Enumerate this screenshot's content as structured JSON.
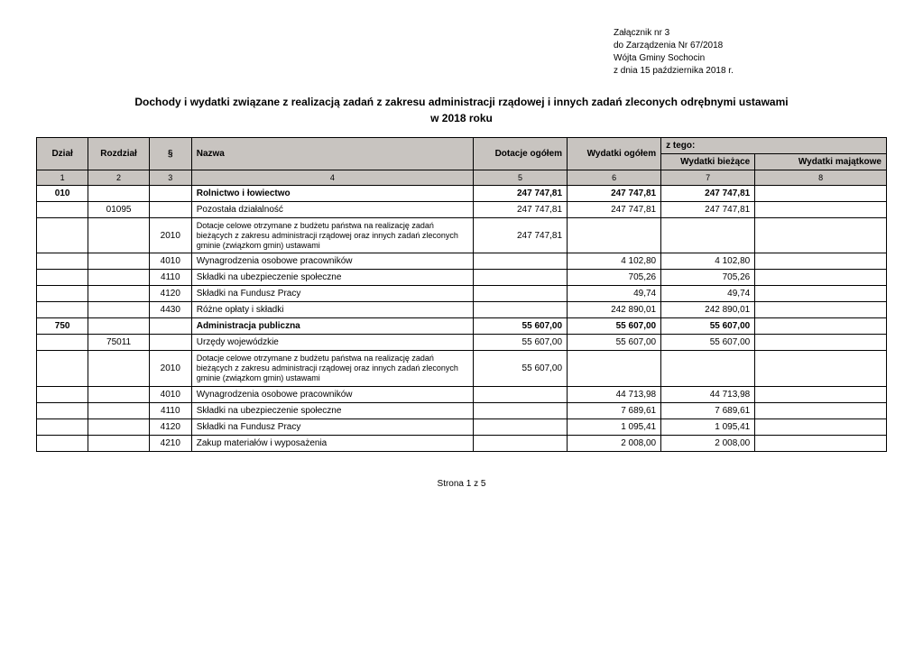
{
  "header": {
    "line1": "Załącznik nr 3",
    "line2": "do Zarządzenia Nr 67/2018",
    "line3": "Wójta Gminy Sochocin",
    "line4": "z dnia 15 października 2018 r."
  },
  "title": "Dochody i wydatki związane z realizacją zadań z zakresu administracji rządowej i innych zadań zleconych odrębnymi ustawami",
  "subtitle": "w 2018 roku",
  "columns": {
    "dzial": "Dział",
    "rozdzial": "Rozdział",
    "paragraf": "§",
    "nazwa": "Nazwa",
    "dotacje": "Dotacje ogółem",
    "wydatki": "Wydatki ogółem",
    "ztego": "z tego:",
    "biezace": "Wydatki bieżące",
    "majatkowe": "Wydatki majątkowe"
  },
  "numrow": {
    "c1": "1",
    "c2": "2",
    "c3": "3",
    "c4": "4",
    "c5": "5",
    "c6": "6",
    "c7": "7",
    "c8": "8"
  },
  "rows": [
    {
      "bold": true,
      "dzial": "010",
      "rozdz": "",
      "par": "",
      "nazwa": "Rolnictwo i łowiectwo",
      "dot": "247 747,81",
      "wyd": "247 747,81",
      "biez": "247 747,81",
      "maj": ""
    },
    {
      "bold": false,
      "dzial": "",
      "rozdz": "01095",
      "par": "",
      "nazwa": "Pozostała działalność",
      "dot": "247 747,81",
      "wyd": "247 747,81",
      "biez": "247 747,81",
      "maj": ""
    },
    {
      "bold": false,
      "small": true,
      "dzial": "",
      "rozdz": "",
      "par": "2010",
      "nazwa": "Dotacje celowe otrzymane z budżetu państwa na realizację zadań bieżących z zakresu administracji rządowej oraz innych zadań zleconych gminie (związkom gmin) ustawami",
      "dot": "247 747,81",
      "wyd": "",
      "biez": "",
      "maj": ""
    },
    {
      "bold": false,
      "dzial": "",
      "rozdz": "",
      "par": "4010",
      "nazwa": "Wynagrodzenia osobowe pracowników",
      "dot": "",
      "wyd": "4 102,80",
      "biez": "4 102,80",
      "maj": ""
    },
    {
      "bold": false,
      "dzial": "",
      "rozdz": "",
      "par": "4110",
      "nazwa": "Składki na ubezpieczenie społeczne",
      "dot": "",
      "wyd": "705,26",
      "biez": "705,26",
      "maj": ""
    },
    {
      "bold": false,
      "dzial": "",
      "rozdz": "",
      "par": "4120",
      "nazwa": "Składki na Fundusz Pracy",
      "dot": "",
      "wyd": "49,74",
      "biez": "49,74",
      "maj": ""
    },
    {
      "bold": false,
      "dzial": "",
      "rozdz": "",
      "par": "4430",
      "nazwa": "Różne opłaty i składki",
      "dot": "",
      "wyd": "242 890,01",
      "biez": "242 890,01",
      "maj": ""
    },
    {
      "bold": true,
      "dzial": "750",
      "rozdz": "",
      "par": "",
      "nazwa": "Administracja publiczna",
      "dot": "55 607,00",
      "wyd": "55 607,00",
      "biez": "55 607,00",
      "maj": ""
    },
    {
      "bold": false,
      "dzial": "",
      "rozdz": "75011",
      "par": "",
      "nazwa": "Urzędy wojewódzkie",
      "dot": "55 607,00",
      "wyd": "55 607,00",
      "biez": "55 607,00",
      "maj": ""
    },
    {
      "bold": false,
      "small": true,
      "dzial": "",
      "rozdz": "",
      "par": "2010",
      "nazwa": "Dotacje celowe otrzymane z budżetu państwa na realizację zadań bieżących z zakresu administracji rządowej oraz innych zadań zleconych gminie (związkom gmin) ustawami",
      "dot": "55 607,00",
      "wyd": "",
      "biez": "",
      "maj": ""
    },
    {
      "bold": false,
      "dzial": "",
      "rozdz": "",
      "par": "4010",
      "nazwa": "Wynagrodzenia osobowe pracowników",
      "dot": "",
      "wyd": "44 713,98",
      "biez": "44 713,98",
      "maj": ""
    },
    {
      "bold": false,
      "dzial": "",
      "rozdz": "",
      "par": "4110",
      "nazwa": "Składki na ubezpieczenie społeczne",
      "dot": "",
      "wyd": "7 689,61",
      "biez": "7 689,61",
      "maj": ""
    },
    {
      "bold": false,
      "dzial": "",
      "rozdz": "",
      "par": "4120",
      "nazwa": "Składki na Fundusz Pracy",
      "dot": "",
      "wyd": "1 095,41",
      "biez": "1 095,41",
      "maj": ""
    },
    {
      "bold": false,
      "dzial": "",
      "rozdz": "",
      "par": "4210",
      "nazwa": "Zakup materiałów i wyposażenia",
      "dot": "",
      "wyd": "2 008,00",
      "biez": "2 008,00",
      "maj": ""
    }
  ],
  "footer": "Strona 1 z 5"
}
